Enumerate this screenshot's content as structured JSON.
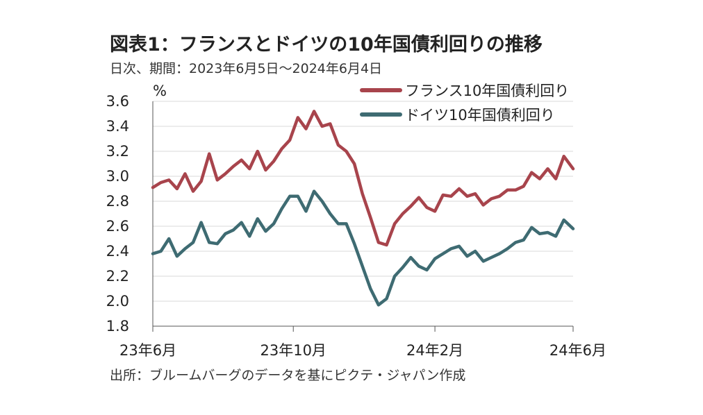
{
  "title": "図表1：フランスとドイツの10年国債利回りの推移",
  "subtitle": "日次、期間：2023年6月5日～2024年6月4日",
  "source": "出所：ブルームバーグのデータを基にピクテ・ジャパン作成",
  "chart_data": {
    "type": "line",
    "ylabel": "%",
    "ylim": [
      1.8,
      3.6
    ],
    "yticks": [
      "1.8",
      "2.0",
      "2.2",
      "2.4",
      "2.6",
      "2.8",
      "3.0",
      "3.2",
      "3.4",
      "3.6"
    ],
    "xticks": [
      "23年6月",
      "23年10月",
      "24年2月",
      "24年6月"
    ],
    "xtick_dates": [
      "2023-06-05",
      "2023-10-05",
      "2024-02-05",
      "2024-06-04"
    ],
    "grid": true,
    "legend_position": "top-right",
    "x": [
      "2023-06-05",
      "2023-06-12",
      "2023-06-19",
      "2023-06-26",
      "2023-07-03",
      "2023-07-10",
      "2023-07-17",
      "2023-07-24",
      "2023-07-31",
      "2023-08-07",
      "2023-08-14",
      "2023-08-21",
      "2023-08-28",
      "2023-09-04",
      "2023-09-11",
      "2023-09-18",
      "2023-09-25",
      "2023-10-02",
      "2023-10-09",
      "2023-10-16",
      "2023-10-23",
      "2023-10-30",
      "2023-11-06",
      "2023-11-13",
      "2023-11-20",
      "2023-11-27",
      "2023-12-04",
      "2023-12-11",
      "2023-12-18",
      "2023-12-25",
      "2024-01-01",
      "2024-01-08",
      "2024-01-15",
      "2024-01-22",
      "2024-01-29",
      "2024-02-05",
      "2024-02-12",
      "2024-02-19",
      "2024-02-26",
      "2024-03-04",
      "2024-03-11",
      "2024-03-18",
      "2024-03-25",
      "2024-04-01",
      "2024-04-08",
      "2024-04-15",
      "2024-04-22",
      "2024-04-29",
      "2024-05-06",
      "2024-05-13",
      "2024-05-20",
      "2024-05-27",
      "2024-06-04"
    ],
    "series": [
      {
        "name": "フランス10年国債利回り",
        "color": "#a8444c",
        "values": [
          2.91,
          2.95,
          2.97,
          2.9,
          3.02,
          2.88,
          2.96,
          3.18,
          2.97,
          3.02,
          3.08,
          3.13,
          3.06,
          3.2,
          3.05,
          3.12,
          3.22,
          3.29,
          3.47,
          3.38,
          3.52,
          3.4,
          3.42,
          3.25,
          3.2,
          3.1,
          2.86,
          2.67,
          2.47,
          2.45,
          2.62,
          2.7,
          2.76,
          2.83,
          2.75,
          2.72,
          2.85,
          2.84,
          2.9,
          2.84,
          2.86,
          2.77,
          2.82,
          2.84,
          2.89,
          2.89,
          2.92,
          3.03,
          2.98,
          3.06,
          2.98,
          3.16,
          3.06
        ]
      },
      {
        "name": "ドイツ10年国債利回り",
        "color": "#3e6b72",
        "values": [
          2.38,
          2.4,
          2.5,
          2.36,
          2.42,
          2.47,
          2.63,
          2.47,
          2.46,
          2.54,
          2.57,
          2.63,
          2.52,
          2.66,
          2.56,
          2.62,
          2.74,
          2.84,
          2.84,
          2.72,
          2.88,
          2.8,
          2.7,
          2.62,
          2.62,
          2.46,
          2.28,
          2.1,
          1.97,
          2.02,
          2.2,
          2.27,
          2.35,
          2.28,
          2.25,
          2.34,
          2.38,
          2.42,
          2.44,
          2.36,
          2.4,
          2.32,
          2.35,
          2.38,
          2.42,
          2.47,
          2.49,
          2.59,
          2.54,
          2.55,
          2.52,
          2.65,
          2.58
        ]
      }
    ]
  }
}
